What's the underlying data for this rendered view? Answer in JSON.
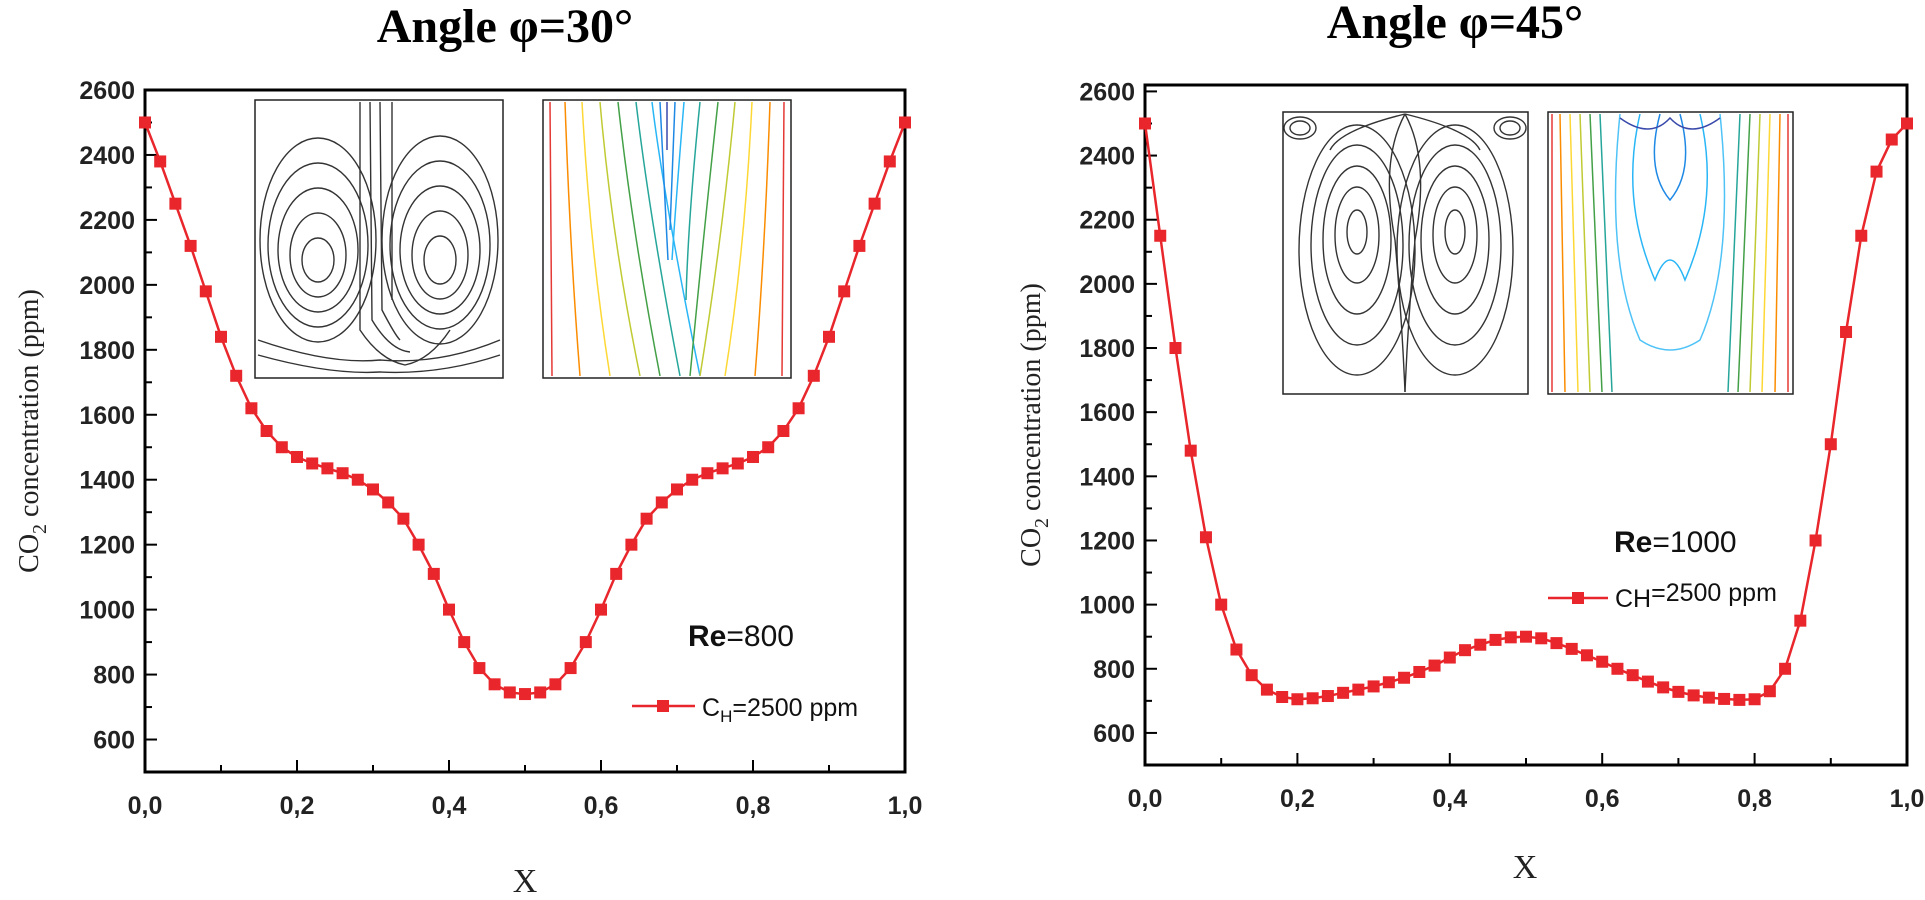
{
  "chart_data": [
    {
      "type": "line",
      "title": "Angle φ=30°",
      "xlabel": "X",
      "ylabel_main": "CO",
      "ylabel_sub": "2",
      "ylabel_rest": " concentration (ppm)",
      "xlim": [
        0.0,
        1.0
      ],
      "ylim": [
        500,
        2600
      ],
      "x_ticks": [
        "0,0",
        "0,2",
        "0,4",
        "0,6",
        "0,8",
        "1,0"
      ],
      "y_ticks": [
        "600",
        "800",
        "1000",
        "1200",
        "1400",
        "1600",
        "1800",
        "2000",
        "2200",
        "2400",
        "2600"
      ],
      "annotation": {
        "bold": "Re",
        "rest": "=800"
      },
      "legend": {
        "main": "C",
        "sub": "H",
        "rest": "=2500 ppm"
      },
      "series": [
        {
          "name": "CH=2500 ppm",
          "color": "#e8262b",
          "x": [
            0.0,
            0.02,
            0.04,
            0.06,
            0.08,
            0.1,
            0.12,
            0.14,
            0.16,
            0.18,
            0.2,
            0.22,
            0.24,
            0.26,
            0.28,
            0.3,
            0.32,
            0.34,
            0.36,
            0.38,
            0.4,
            0.42,
            0.44,
            0.46,
            0.48,
            0.5,
            0.52,
            0.54,
            0.56,
            0.58,
            0.6,
            0.62,
            0.64,
            0.66,
            0.68,
            0.7,
            0.72,
            0.74,
            0.76,
            0.78,
            0.8,
            0.82,
            0.84,
            0.86,
            0.88,
            0.9,
            0.92,
            0.94,
            0.96,
            0.98,
            1.0
          ],
          "y": [
            2500,
            2380,
            2250,
            2120,
            1980,
            1840,
            1720,
            1620,
            1550,
            1500,
            1470,
            1450,
            1435,
            1420,
            1400,
            1370,
            1330,
            1280,
            1200,
            1110,
            1000,
            900,
            820,
            770,
            745,
            740,
            745,
            770,
            820,
            900,
            1000,
            1110,
            1200,
            1280,
            1330,
            1370,
            1400,
            1420,
            1435,
            1450,
            1470,
            1500,
            1550,
            1620,
            1720,
            1840,
            1980,
            2120,
            2250,
            2380,
            2500
          ]
        }
      ]
    },
    {
      "type": "line",
      "title": "Angle φ=45°",
      "xlabel": "X",
      "ylabel_main": "CO",
      "ylabel_sub": "2",
      "ylabel_rest": " concentration (ppm)",
      "xlim": [
        0.0,
        1.0
      ],
      "ylim": [
        500,
        2620
      ],
      "x_ticks": [
        "0,0",
        "0,2",
        "0,4",
        "0,6",
        "0,8",
        "1,0"
      ],
      "y_ticks": [
        "600",
        "800",
        "1000",
        "1200",
        "1400",
        "1600",
        "1800",
        "2000",
        "2200",
        "2400",
        "2600"
      ],
      "annotation": {
        "bold": "Re",
        "rest": "=1000"
      },
      "legend": {
        "main": "CH",
        "sub": "",
        "rest": "=2500 ppm"
      },
      "series": [
        {
          "name": "CH=2500 ppm",
          "color": "#e8262b",
          "x": [
            0.0,
            0.02,
            0.04,
            0.06,
            0.08,
            0.1,
            0.12,
            0.14,
            0.16,
            0.18,
            0.2,
            0.22,
            0.24,
            0.26,
            0.28,
            0.3,
            0.32,
            0.34,
            0.36,
            0.38,
            0.4,
            0.42,
            0.44,
            0.46,
            0.48,
            0.5,
            0.52,
            0.54,
            0.56,
            0.58,
            0.6,
            0.62,
            0.64,
            0.66,
            0.68,
            0.7,
            0.72,
            0.74,
            0.76,
            0.78,
            0.8,
            0.82,
            0.84,
            0.86,
            0.88,
            0.9,
            0.92,
            0.94,
            0.96,
            0.98,
            1.0
          ],
          "y": [
            2500,
            2150,
            1800,
            1480,
            1210,
            1000,
            860,
            780,
            735,
            712,
            705,
            708,
            715,
            725,
            735,
            745,
            758,
            772,
            790,
            810,
            835,
            858,
            875,
            890,
            898,
            900,
            895,
            880,
            862,
            842,
            822,
            800,
            780,
            760,
            742,
            728,
            717,
            710,
            706,
            703,
            705,
            730,
            800,
            950,
            1200,
            1500,
            1850,
            2150,
            2350,
            2450,
            2500
          ]
        }
      ]
    }
  ]
}
